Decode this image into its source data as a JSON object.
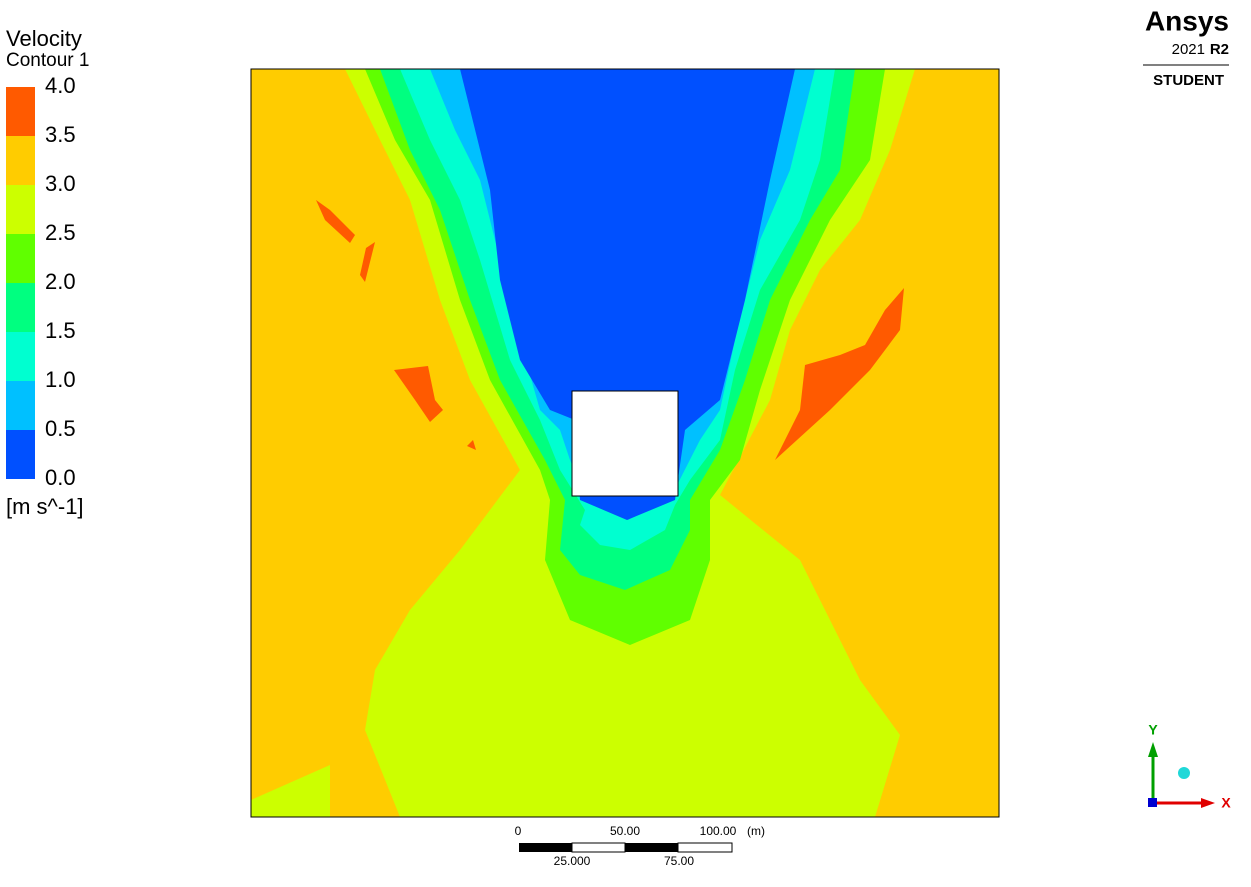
{
  "legend": {
    "title": "Velocity",
    "subtitle": "Contour 1",
    "levels": [
      "4.0",
      "3.5",
      "3.0",
      "2.5",
      "2.0",
      "1.5",
      "1.0",
      "0.5",
      "0.0"
    ],
    "unit": "[m s^-1]"
  },
  "logo": {
    "brand": "Ansys",
    "version": "2021",
    "release": "R2",
    "edition": "STUDENT"
  },
  "scale_bar": {
    "top_labels": [
      "0",
      "50.00",
      "100.00"
    ],
    "unit": "(m)",
    "bottom_labels": [
      "25.000",
      "75.00"
    ]
  },
  "axes": {
    "y": "Y",
    "x": "X"
  }
}
